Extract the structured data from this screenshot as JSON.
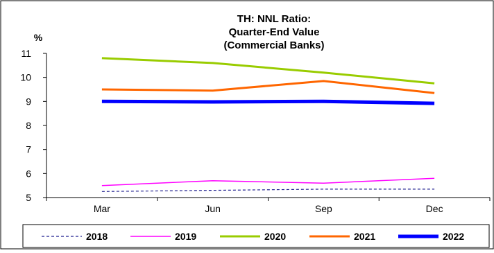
{
  "chart_data": {
    "type": "line",
    "title_lines": [
      "TH: NNL Ratio:",
      "Quarter-End Value",
      "(Commercial Banks)"
    ],
    "y_unit": "%",
    "categories": [
      "Mar",
      "Jun",
      "Sep",
      "Dec"
    ],
    "ylim": [
      5,
      11
    ],
    "yticks": [
      5,
      6,
      7,
      8,
      9,
      10,
      11
    ],
    "grid": false,
    "legend_position": "bottom",
    "series": [
      {
        "name": "2018",
        "values": [
          5.25,
          5.3,
          5.35,
          5.35
        ],
        "color": "#1f1f8f",
        "style": "dashed"
      },
      {
        "name": "2019",
        "values": [
          5.5,
          5.7,
          5.6,
          5.8
        ],
        "color": "#ff00ff",
        "style": "solid"
      },
      {
        "name": "2020",
        "values": [
          10.8,
          10.6,
          10.2,
          9.75
        ],
        "color": "#99cc00",
        "style": "solid"
      },
      {
        "name": "2021",
        "values": [
          9.5,
          9.45,
          9.85,
          9.35
        ],
        "color": "#ff6600",
        "style": "solid"
      },
      {
        "name": "2022",
        "values": [
          9.0,
          8.98,
          9.0,
          8.92
        ],
        "color": "#0000ff",
        "style": "solid-thick"
      }
    ]
  }
}
